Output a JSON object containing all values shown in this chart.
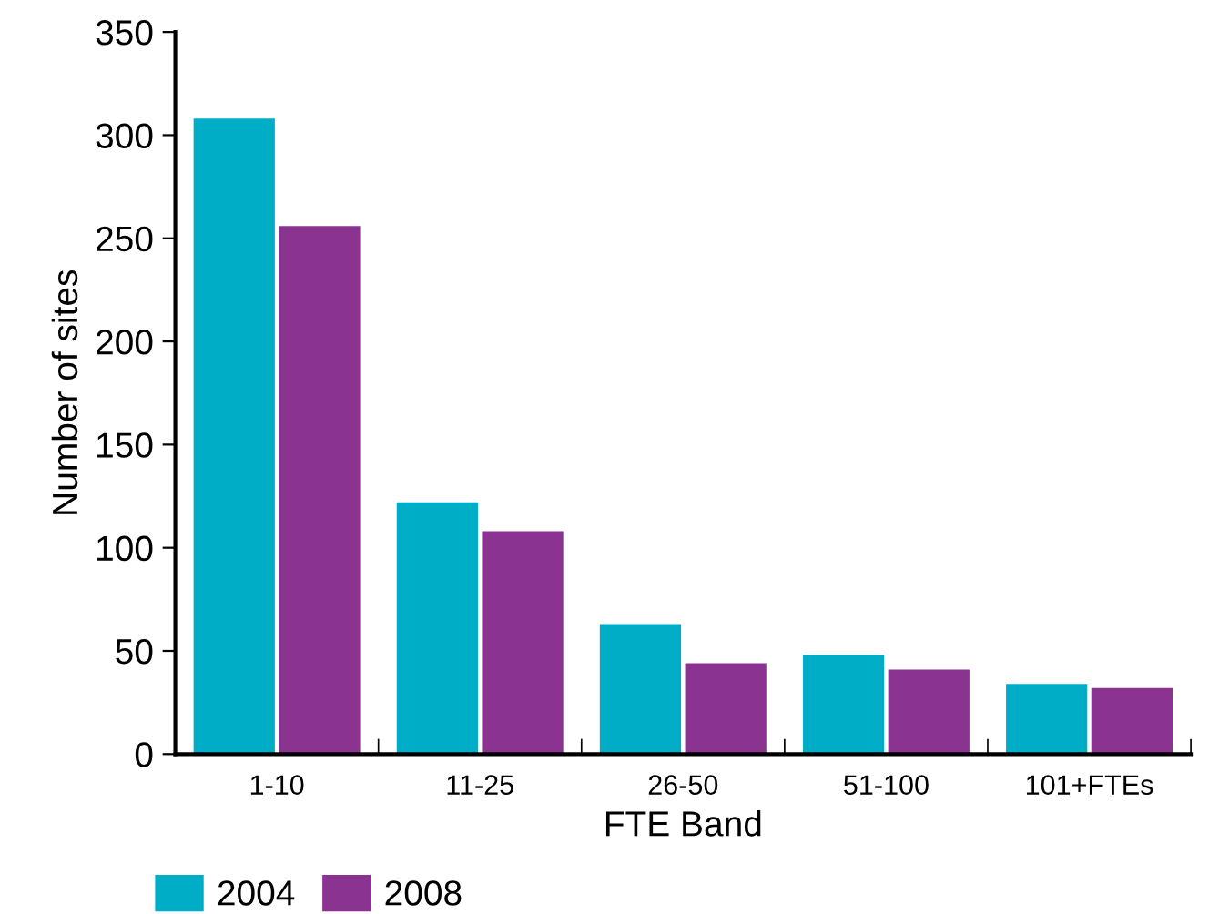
{
  "chart_data": {
    "type": "bar",
    "xlabel": "FTE Band",
    "ylabel": "Number of sites",
    "categories": [
      "1-10",
      "11-25",
      "26-50",
      "51-100",
      "101+FTEs"
    ],
    "series": [
      {
        "name": "2004",
        "color": "#00adc6",
        "values": [
          308,
          122,
          63,
          48,
          34
        ]
      },
      {
        "name": "2008",
        "color": "#8b3391",
        "values": [
          256,
          108,
          44,
          41,
          32
        ]
      }
    ],
    "ylim": [
      0,
      350
    ],
    "yticks": [
      0,
      50,
      100,
      150,
      200,
      250,
      300,
      350
    ],
    "grid": false,
    "legend": "bottom left"
  }
}
